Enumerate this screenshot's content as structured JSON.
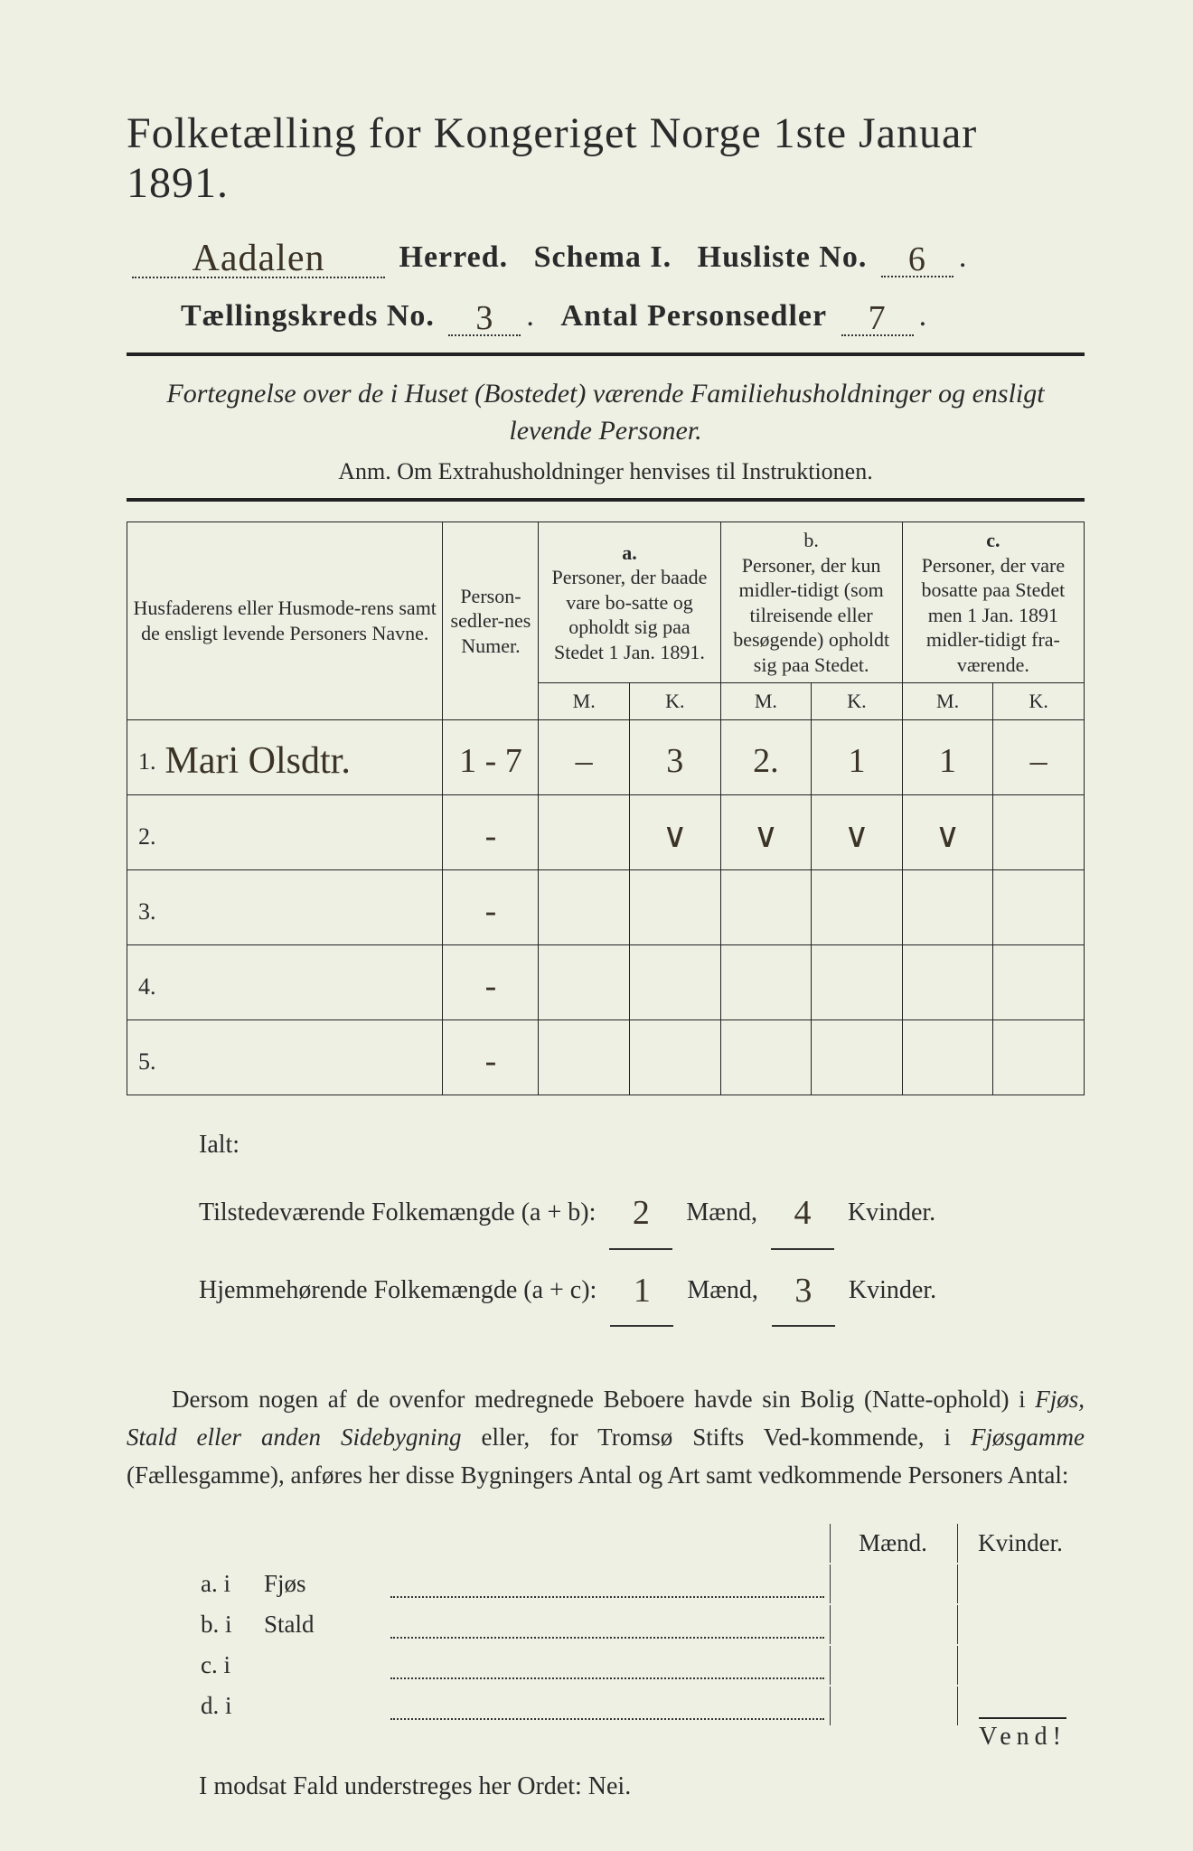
{
  "page": {
    "background_color": "#eef0e4",
    "text_color": "#2a2a2a",
    "handwriting_color": "#3a3326"
  },
  "header": {
    "title": "Folketælling for Kongeriget Norge 1ste Januar 1891.",
    "herred_value": "Aadalen",
    "herred_label": "Herred.",
    "schema_label": "Schema I.",
    "husliste_label": "Husliste No.",
    "husliste_value": "6",
    "kreds_label": "Tællingskreds No.",
    "kreds_value": "3",
    "antal_label": "Antal Personsedler",
    "antal_value": "7"
  },
  "subtitle": {
    "line1": "Fortegnelse over de i Huset (Bostedet) værende Familiehusholdninger og ensligt",
    "line2": "levende Personer.",
    "anm": "Anm. Om Extrahusholdninger henvises til Instruktionen."
  },
  "table": {
    "col_names": "Husfaderens eller Husmode-rens samt de ensligt levende Personers Navne.",
    "col_numer": "Person-sedler-nes Numer.",
    "col_a_head": "a.",
    "col_a": "Personer, der baade vare bo-satte og opholdt sig paa Stedet 1 Jan. 1891.",
    "col_b_head": "b.",
    "col_b": "Personer, der kun midler-tidigt (som tilreisende eller besøgende) opholdt sig paa Stedet.",
    "col_c_head": "c.",
    "col_c": "Personer, der vare bosatte paa Stedet men 1 Jan. 1891 midler-tidigt fra-værende.",
    "m": "M.",
    "k": "K.",
    "rows": [
      {
        "num": "1.",
        "name": "Mari Olsdtr.",
        "numer": "1 - 7",
        "aM": "–",
        "aK": "3",
        "bM": "2.",
        "bK": "1",
        "cM": "1",
        "cK": "–"
      },
      {
        "num": "2.",
        "name": "",
        "numer": "-",
        "aM": "",
        "aK": "∨",
        "bM": "∨",
        "bK": "∨",
        "cM": "∨",
        "cK": ""
      },
      {
        "num": "3.",
        "name": "",
        "numer": "-",
        "aM": "",
        "aK": "",
        "bM": "",
        "bK": "",
        "cM": "",
        "cK": ""
      },
      {
        "num": "4.",
        "name": "",
        "numer": "-",
        "aM": "",
        "aK": "",
        "bM": "",
        "bK": "",
        "cM": "",
        "cK": ""
      },
      {
        "num": "5.",
        "name": "",
        "numer": "-",
        "aM": "",
        "aK": "",
        "bM": "",
        "bK": "",
        "cM": "",
        "cK": ""
      }
    ]
  },
  "totals": {
    "ialt_label": "Ialt:",
    "line1_label": "Tilstedeværende Folkemængde (a + b):",
    "line1_m": "2",
    "line1_k": "4",
    "line2_label": "Hjemmehørende Folkemængde (a + c):",
    "line2_m": "1",
    "line2_k": "3",
    "maend": "Mænd,",
    "kvinder": "Kvinder."
  },
  "paragraph": {
    "text1": "Dersom nogen af de ovenfor medregnede Beboere havde sin Bolig (Natte-ophold) i ",
    "em1": "Fjøs, Stald eller anden Sidebygning",
    "text2": " eller, for Tromsø Stifts Ved-kommende, i ",
    "em2": "Fjøsgamme",
    "text3": " (Fællesgamme), anføres her disse Bygningers Antal og Art samt vedkommende Personers Antal:"
  },
  "sidelist": {
    "maend": "Mænd.",
    "kvinder": "Kvinder.",
    "rows": [
      {
        "lab": "a. i",
        "name": "Fjøs"
      },
      {
        "lab": "b. i",
        "name": "Stald"
      },
      {
        "lab": "c. i",
        "name": ""
      },
      {
        "lab": "d. i",
        "name": ""
      }
    ]
  },
  "nei": {
    "text": "I modsat Fald understreges her Ordet: Nei."
  },
  "vend": "Vend!"
}
